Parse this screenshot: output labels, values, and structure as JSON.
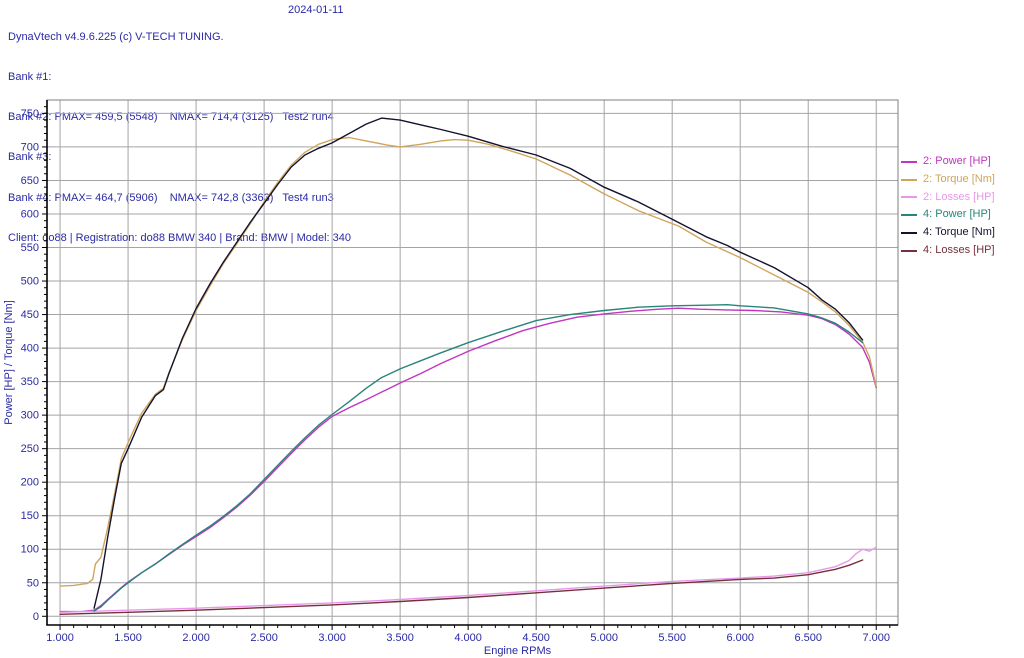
{
  "header": {
    "title": "DynaVtech v4.9.6.225 (c) V-TECH TUNING.",
    "date": "2024-01-11",
    "rows": [
      "Bank #1:",
      "Bank #2: PMAX= 459,5 (5548)    NMAX= 714,4 (3125)   Test2 run4",
      "Bank #3:",
      "Bank #4: PMAX= 464,7 (5906)    NMAX= 742,8 (3363)   Test4 run3",
      "Client: do88 | Registration: do88 BMW 340 | Brand: BMW | Model: 340"
    ]
  },
  "chart_data": {
    "type": "line",
    "xlabel": "Engine RPMs",
    "ylabel": "Power [HP] / Torque [Nm]",
    "xlim": [
      904,
      7160
    ],
    "ylim": [
      -13,
      770
    ],
    "grid": true,
    "legend_position": "right",
    "x_major_ticks": [
      1000,
      1500,
      2000,
      2500,
      3000,
      3500,
      4000,
      4500,
      5000,
      5500,
      6000,
      6500,
      7000
    ],
    "x_tick_labels": [
      "1.000",
      "1.500",
      "2.000",
      "2.500",
      "3.000",
      "3.500",
      "4.000",
      "4.500",
      "5.000",
      "5.500",
      "6.000",
      "6.500",
      "7.000"
    ],
    "x_minor_step": 100,
    "y_major_ticks": [
      0,
      50,
      100,
      150,
      200,
      250,
      300,
      350,
      400,
      450,
      500,
      550,
      600,
      650,
      700,
      750
    ],
    "y_minor_step": 10,
    "colors": {
      "grid": "#a4a4a4",
      "border": "#7f7f7f",
      "axis": "#000000",
      "text": "#2a2aa4"
    },
    "series": [
      {
        "name": "2: Power [HP]",
        "color": "#c136c1",
        "points": [
          [
            1000,
            7
          ],
          [
            1100,
            7
          ],
          [
            1160,
            7
          ],
          [
            1250,
            9
          ],
          [
            1300,
            16
          ],
          [
            1350,
            25
          ],
          [
            1400,
            34
          ],
          [
            1450,
            43
          ],
          [
            1500,
            51
          ],
          [
            1600,
            65
          ],
          [
            1700,
            78
          ],
          [
            1800,
            92
          ],
          [
            1900,
            106
          ],
          [
            2000,
            119
          ],
          [
            2100,
            132
          ],
          [
            2200,
            147
          ],
          [
            2300,
            163
          ],
          [
            2400,
            181
          ],
          [
            2500,
            201
          ],
          [
            2600,
            222
          ],
          [
            2700,
            243
          ],
          [
            2800,
            263
          ],
          [
            2900,
            282
          ],
          [
            3000,
            298
          ],
          [
            3125,
            311
          ],
          [
            3250,
            323
          ],
          [
            3400,
            338
          ],
          [
            3500,
            348
          ],
          [
            3650,
            362
          ],
          [
            3800,
            377
          ],
          [
            4000,
            395
          ],
          [
            4200,
            411
          ],
          [
            4400,
            426
          ],
          [
            4600,
            437
          ],
          [
            4800,
            446
          ],
          [
            5000,
            451
          ],
          [
            5200,
            455
          ],
          [
            5400,
            458
          ],
          [
            5548,
            459.5
          ],
          [
            5700,
            458
          ],
          [
            5900,
            457
          ],
          [
            6100,
            456
          ],
          [
            6300,
            454
          ],
          [
            6500,
            449
          ],
          [
            6600,
            444
          ],
          [
            6700,
            435
          ],
          [
            6800,
            421
          ],
          [
            6900,
            401
          ],
          [
            6950,
            379
          ],
          [
            7000,
            341
          ]
        ]
      },
      {
        "name": "2: Torque [Nm]",
        "color": "#cfa55b",
        "points": [
          [
            1000,
            45
          ],
          [
            1100,
            46
          ],
          [
            1200,
            49
          ],
          [
            1240,
            55
          ],
          [
            1260,
            78
          ],
          [
            1300,
            88
          ],
          [
            1350,
            132
          ],
          [
            1400,
            182
          ],
          [
            1450,
            235
          ],
          [
            1500,
            259
          ],
          [
            1600,
            303
          ],
          [
            1700,
            331
          ],
          [
            1760,
            340
          ],
          [
            1800,
            363
          ],
          [
            1900,
            413
          ],
          [
            2000,
            456
          ],
          [
            2100,
            492
          ],
          [
            2200,
            526
          ],
          [
            2300,
            556
          ],
          [
            2400,
            586
          ],
          [
            2500,
            618
          ],
          [
            2600,
            647
          ],
          [
            2700,
            673
          ],
          [
            2800,
            692
          ],
          [
            2900,
            704
          ],
          [
            3000,
            711
          ],
          [
            3125,
            714
          ],
          [
            3250,
            709
          ],
          [
            3400,
            703
          ],
          [
            3500,
            700
          ],
          [
            3650,
            704
          ],
          [
            3800,
            709
          ],
          [
            3900,
            711
          ],
          [
            4000,
            710
          ],
          [
            4150,
            704
          ],
          [
            4300,
            695
          ],
          [
            4500,
            682
          ],
          [
            4750,
            658
          ],
          [
            5000,
            630
          ],
          [
            5250,
            605
          ],
          [
            5548,
            582
          ],
          [
            5750,
            558
          ],
          [
            6000,
            535
          ],
          [
            6250,
            509
          ],
          [
            6500,
            483
          ],
          [
            6600,
            469
          ],
          [
            6700,
            454
          ],
          [
            6800,
            434
          ],
          [
            6900,
            409
          ],
          [
            6950,
            387
          ],
          [
            7000,
            343
          ]
        ]
      },
      {
        "name": "2: Losses [HP]",
        "color": "#e998e9",
        "points": [
          [
            1000,
            6
          ],
          [
            1500,
            9
          ],
          [
            2000,
            12
          ],
          [
            2500,
            16
          ],
          [
            3000,
            20
          ],
          [
            3500,
            25
          ],
          [
            4000,
            31
          ],
          [
            4500,
            38
          ],
          [
            5000,
            45
          ],
          [
            5500,
            52
          ],
          [
            6000,
            57
          ],
          [
            6250,
            60
          ],
          [
            6500,
            65
          ],
          [
            6700,
            74
          ],
          [
            6800,
            83
          ],
          [
            6850,
            93
          ],
          [
            6900,
            100
          ],
          [
            6950,
            97
          ],
          [
            7000,
            103
          ]
        ]
      },
      {
        "name": "4: Power [HP]",
        "color": "#28857a",
        "points": [
          [
            1250,
            8
          ],
          [
            1300,
            14
          ],
          [
            1350,
            24
          ],
          [
            1400,
            33
          ],
          [
            1450,
            42
          ],
          [
            1500,
            50
          ],
          [
            1600,
            65
          ],
          [
            1700,
            78
          ],
          [
            1800,
            93
          ],
          [
            1900,
            107
          ],
          [
            2000,
            121
          ],
          [
            2100,
            134
          ],
          [
            2200,
            149
          ],
          [
            2300,
            165
          ],
          [
            2400,
            183
          ],
          [
            2500,
            204
          ],
          [
            2600,
            225
          ],
          [
            2700,
            246
          ],
          [
            2800,
            266
          ],
          [
            2900,
            285
          ],
          [
            3000,
            301
          ],
          [
            3125,
            320
          ],
          [
            3250,
            340
          ],
          [
            3363,
            356
          ],
          [
            3500,
            369
          ],
          [
            3650,
            381
          ],
          [
            3800,
            393
          ],
          [
            4000,
            408
          ],
          [
            4250,
            425
          ],
          [
            4500,
            441
          ],
          [
            4750,
            450
          ],
          [
            5000,
            456
          ],
          [
            5250,
            461
          ],
          [
            5500,
            463
          ],
          [
            5750,
            464
          ],
          [
            5906,
            464.7
          ],
          [
            6000,
            463
          ],
          [
            6250,
            460
          ],
          [
            6500,
            451
          ],
          [
            6600,
            445
          ],
          [
            6700,
            437
          ],
          [
            6800,
            424
          ],
          [
            6900,
            408
          ]
        ]
      },
      {
        "name": "4: Torque [Nm]",
        "color": "#13132f",
        "points": [
          [
            1250,
            12
          ],
          [
            1300,
            55
          ],
          [
            1350,
            118
          ],
          [
            1400,
            175
          ],
          [
            1450,
            228
          ],
          [
            1500,
            250
          ],
          [
            1600,
            297
          ],
          [
            1700,
            329
          ],
          [
            1760,
            338
          ],
          [
            1800,
            362
          ],
          [
            1900,
            415
          ],
          [
            2000,
            459
          ],
          [
            2100,
            495
          ],
          [
            2200,
            528
          ],
          [
            2300,
            558
          ],
          [
            2400,
            588
          ],
          [
            2500,
            616
          ],
          [
            2600,
            644
          ],
          [
            2700,
            670
          ],
          [
            2800,
            688
          ],
          [
            2900,
            698
          ],
          [
            3000,
            706
          ],
          [
            3125,
            720
          ],
          [
            3250,
            734
          ],
          [
            3363,
            743
          ],
          [
            3500,
            740
          ],
          [
            3650,
            733
          ],
          [
            3800,
            726
          ],
          [
            4000,
            716
          ],
          [
            4250,
            701
          ],
          [
            4500,
            688
          ],
          [
            4750,
            668
          ],
          [
            5000,
            640
          ],
          [
            5250,
            618
          ],
          [
            5500,
            592
          ],
          [
            5750,
            566
          ],
          [
            5906,
            553
          ],
          [
            6000,
            543
          ],
          [
            6250,
            520
          ],
          [
            6500,
            490
          ],
          [
            6600,
            472
          ],
          [
            6700,
            458
          ],
          [
            6800,
            438
          ],
          [
            6900,
            412
          ]
        ]
      },
      {
        "name": "4: Losses [HP]",
        "color": "#74303c",
        "points": [
          [
            1000,
            3
          ],
          [
            1500,
            6
          ],
          [
            2000,
            9
          ],
          [
            2500,
            13
          ],
          [
            3000,
            17
          ],
          [
            3500,
            22
          ],
          [
            4000,
            28
          ],
          [
            4500,
            35
          ],
          [
            5000,
            42
          ],
          [
            5500,
            49
          ],
          [
            6000,
            55
          ],
          [
            6250,
            57
          ],
          [
            6500,
            62
          ],
          [
            6700,
            70
          ],
          [
            6800,
            76
          ],
          [
            6900,
            84
          ]
        ]
      }
    ]
  }
}
